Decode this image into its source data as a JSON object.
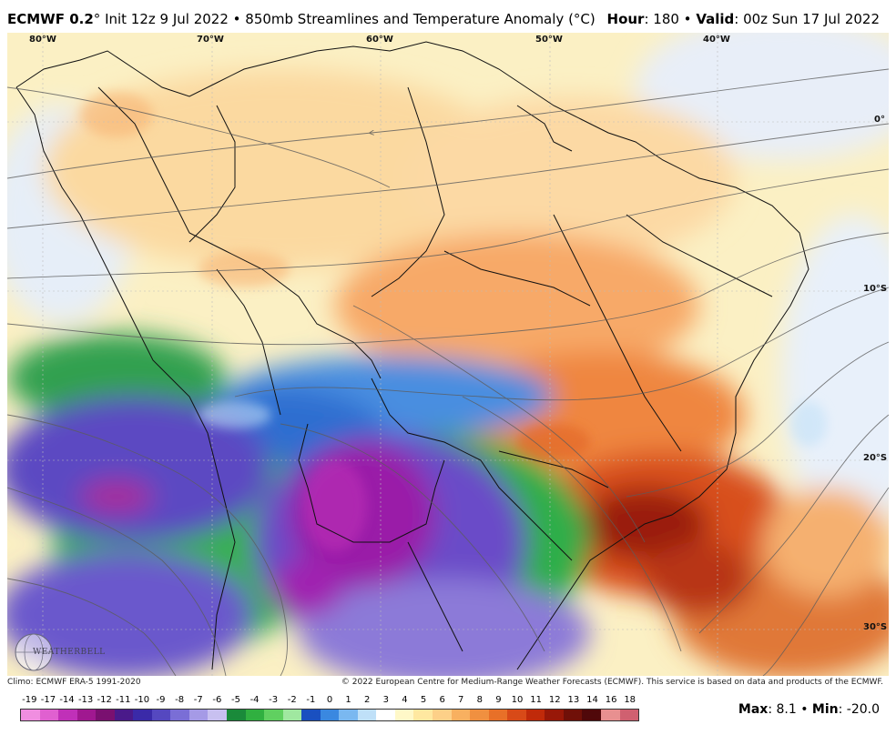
{
  "header": {
    "model": "ECMWF 0.2",
    "degree": "°",
    "init_text": "Init 12z 9 Jul 2022 • 850mb Streamlines and Temperature Anomaly (°C)",
    "hour_label": "Hour",
    "hour_value": ": 180 •",
    "valid_label": "Valid",
    "valid_value": ": 00z Sun 17 Jul 2022"
  },
  "map": {
    "lon_labels": [
      "80°W",
      "70°W",
      "60°W",
      "50°W",
      "40°W"
    ],
    "lat_labels": [
      "0°",
      "10°S",
      "20°S",
      "30°S"
    ]
  },
  "footer": {
    "climo": "Climo: ECMWF ERA-5 1991-2020",
    "copyright": "© 2022 European Centre for Medium-Range Weather Forecasts (ECMWF). This service is based on data and products of the ECMWF.",
    "logo_text": "WEATHERBELL"
  },
  "colorbar": {
    "labels": [
      "-19",
      "-17",
      "-14",
      "-13",
      "-12",
      "-11",
      "-10",
      "-9",
      "-8",
      "-7",
      "-6",
      "-5",
      "-4",
      "-3",
      "-2",
      "-1",
      "0",
      "1",
      "2",
      "3",
      "4",
      "5",
      "6",
      "7",
      "8",
      "9",
      "10",
      "11",
      "12",
      "13",
      "14",
      "16",
      "18"
    ],
    "colors": [
      "#f08ee0",
      "#e060d0",
      "#c030b8",
      "#a01890",
      "#7a1070",
      "#4a1a8a",
      "#3a2aa8",
      "#5548c0",
      "#7a6ed6",
      "#a59ae6",
      "#c8c0f0",
      "#1a8a3a",
      "#30b040",
      "#60d060",
      "#a0e8a0",
      "#1a50c0",
      "#3a88e0",
      "#7ab8f0",
      "#bfe0f8",
      "#ffffff",
      "#fff8c8",
      "#ffe8a0",
      "#fdd088",
      "#f8b060",
      "#f09040",
      "#e87028",
      "#d84a18",
      "#c02a0a",
      "#981808",
      "#701008",
      "#50080a",
      "#e89090",
      "#d06070"
    ]
  },
  "stats": {
    "max_label": "Max",
    "max_value": ": 8.1 •",
    "min_label": "Min",
    "min_value": ": -20.0"
  }
}
